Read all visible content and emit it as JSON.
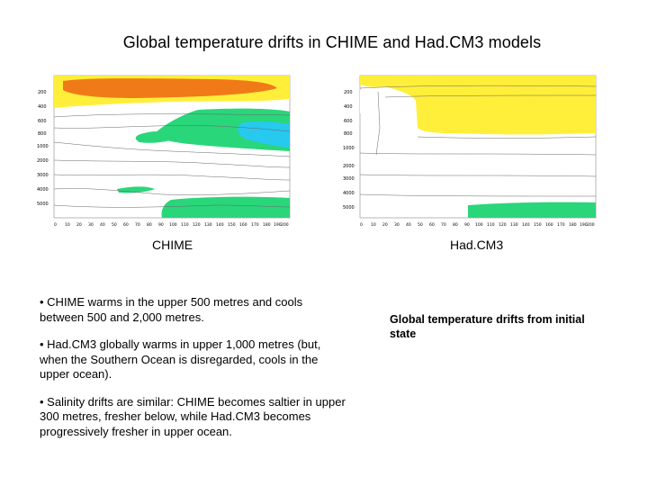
{
  "title": "Global temperature drifts in CHIME and Had.CM3 models",
  "plots": {
    "chime": {
      "caption": "CHIME",
      "y_ticks": [
        "200",
        "400",
        "600",
        "800",
        "1000",
        "2000",
        "3000",
        "4000",
        "5000"
      ],
      "x_ticks": [
        "0",
        "10",
        "20",
        "30",
        "40",
        "50",
        "60",
        "70",
        "80",
        "90",
        "100",
        "110",
        "120",
        "130",
        "140",
        "150",
        "160",
        "170",
        "180",
        "190",
        "200"
      ]
    },
    "hadcm3": {
      "caption": "Had.CM3",
      "y_ticks": [
        "200",
        "400",
        "600",
        "800",
        "1000",
        "2000",
        "3000",
        "4000",
        "5000"
      ],
      "x_ticks": [
        "0",
        "10",
        "20",
        "30",
        "40",
        "50",
        "60",
        "70",
        "80",
        "90",
        "100",
        "110",
        "120",
        "130",
        "140",
        "150",
        "160",
        "170",
        "180",
        "190",
        "200"
      ]
    }
  },
  "bullets": [
    "• CHIME warms in the upper 500 metres and cools between 500 and 2,000 metres.",
    "• Had.CM3 globally warms in upper 1,000 metres (but, when the Southern Ocean is disregarded, cools in the upper ocean).",
    "• Salinity drifts are similar: CHIME becomes saltier in upper 300 metres, fresher below, while Had.CM3 becomes progressively fresher in upper ocean."
  ],
  "side_note": "Global temperature drifts from initial state",
  "colors": {
    "warm_orange": "#f07a18",
    "warm_yellow": "#ffef3a",
    "cool_green": "#2ad67a",
    "cool_cyan": "#27c9ee"
  }
}
